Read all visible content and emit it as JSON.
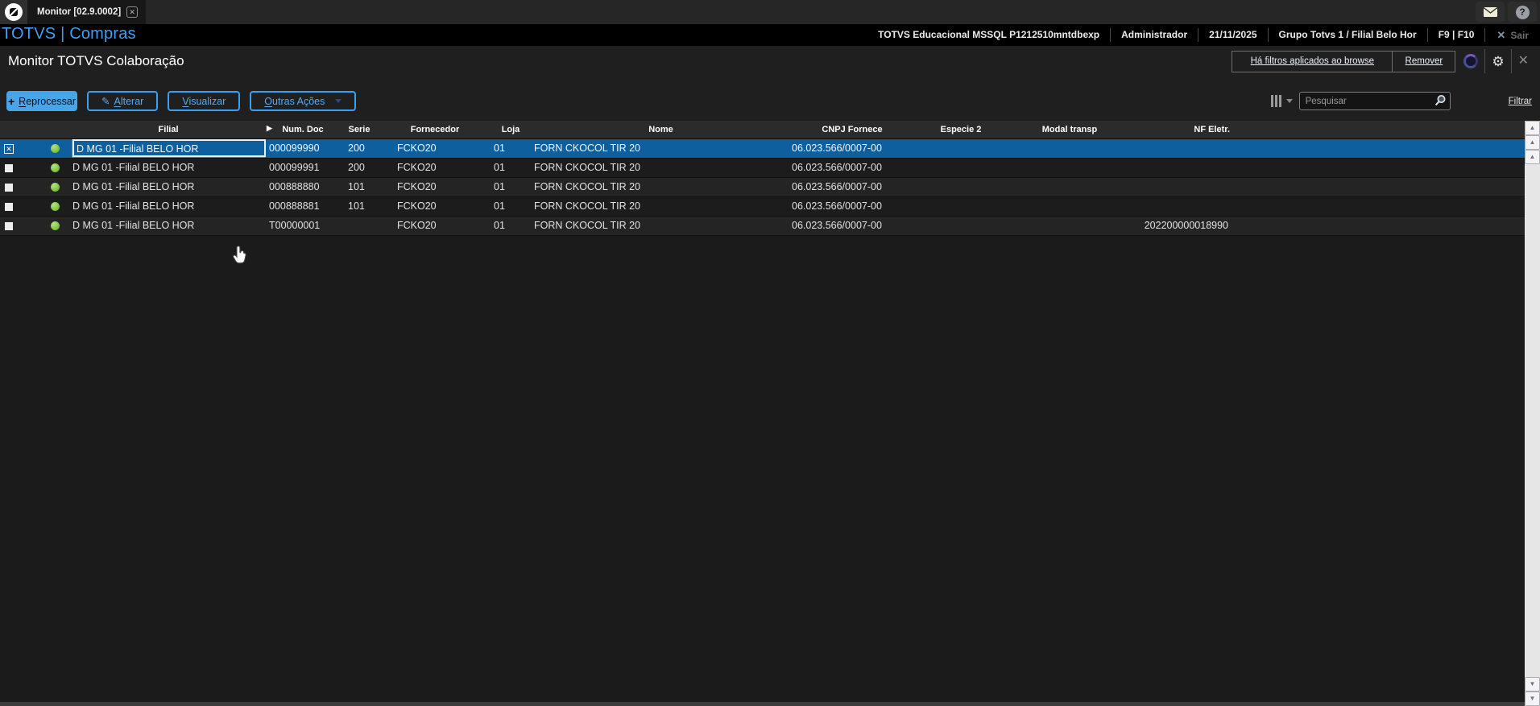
{
  "topbar": {
    "tab_label": "Monitor [02.9.0002]"
  },
  "appbar": {
    "brand": "TOTVS | Compras",
    "env_items": [
      "TOTVS Educacional MSSQL P1212510mntdbexp",
      "Administrador",
      "21/11/2025",
      "Grupo Totvs 1 / Filial Belo Hor",
      "F9 | F10"
    ],
    "exit_label": "Sair"
  },
  "titlebar": {
    "title": "Monitor TOTVS Colaboração",
    "filters_applied_label": "Há filtros aplicados ao browse",
    "remove_label": "Remover"
  },
  "toolbar": {
    "buttons": [
      {
        "label": "Reprocessar",
        "accesskey": "R",
        "icon": "plus-icon",
        "style": "primary"
      },
      {
        "label": "Alterar",
        "accesskey": "A",
        "icon": "pencil-icon",
        "style": "outline"
      },
      {
        "label": "Visualizar",
        "accesskey": "V",
        "icon": "",
        "style": "outline"
      },
      {
        "label": "Outras Ações",
        "accesskey": "O",
        "icon": "",
        "style": "outline",
        "has_dropdown": true
      }
    ],
    "search_placeholder": "Pesquisar",
    "filter_link": "Filtrar"
  },
  "table": {
    "columns": [
      "Filial",
      "Num. Doc",
      "Serie",
      "Fornecedor",
      "Loja",
      "Nome",
      "CNPJ Fornece",
      "Especie 2",
      "Modal transp",
      "NF Eletr."
    ],
    "rows": [
      {
        "checked": true,
        "selected": true,
        "status": "green",
        "filial": "D MG 01 -Filial BELO HOR",
        "num_doc": "000099990",
        "serie": "200",
        "fornecedor": "FCKO20",
        "loja": "01",
        "nome": "FORN CKOCOL TIR 20",
        "cnpj": "06.023.566/0007-00",
        "especie2": "",
        "modal": "",
        "nf_eletr": ""
      },
      {
        "checked": false,
        "selected": false,
        "status": "green",
        "filial": "D MG 01 -Filial BELO HOR",
        "num_doc": "000099991",
        "serie": "200",
        "fornecedor": "FCKO20",
        "loja": "01",
        "nome": "FORN CKOCOL TIR 20",
        "cnpj": "06.023.566/0007-00",
        "especie2": "",
        "modal": "",
        "nf_eletr": ""
      },
      {
        "checked": false,
        "selected": false,
        "status": "green",
        "filial": "D MG 01 -Filial BELO HOR",
        "num_doc": "000888880",
        "serie": "101",
        "fornecedor": "FCKO20",
        "loja": "01",
        "nome": "FORN CKOCOL TIR 20",
        "cnpj": "06.023.566/0007-00",
        "especie2": "",
        "modal": "",
        "nf_eletr": ""
      },
      {
        "checked": false,
        "selected": false,
        "status": "green",
        "filial": "D MG 01 -Filial BELO HOR",
        "num_doc": "000888881",
        "serie": "101",
        "fornecedor": "FCKO20",
        "loja": "01",
        "nome": "FORN CKOCOL TIR 20",
        "cnpj": "06.023.566/0007-00",
        "especie2": "",
        "modal": "",
        "nf_eletr": ""
      },
      {
        "checked": false,
        "selected": false,
        "status": "green",
        "filial": "D MG 01 -Filial BELO HOR",
        "num_doc": "T00000001",
        "serie": "",
        "fornecedor": "FCKO20",
        "loja": "01",
        "nome": "FORN CKOCOL TIR 20",
        "cnpj": "06.023.566/0007-00",
        "especie2": "",
        "modal": "",
        "nf_eletr": "202200000018990"
      }
    ]
  },
  "icons": {
    "close": "✕",
    "gear": "⚙",
    "help": "?",
    "plus": "+",
    "pencil": "✎",
    "marker": "▶",
    "up_arrow": "▲",
    "down_arrow": "▼"
  },
  "colors": {
    "accent": "#3f9ff5",
    "primary_button": "#4aa4e8",
    "selected_row": "#0e5f9e",
    "status_green": "#7cc142"
  }
}
